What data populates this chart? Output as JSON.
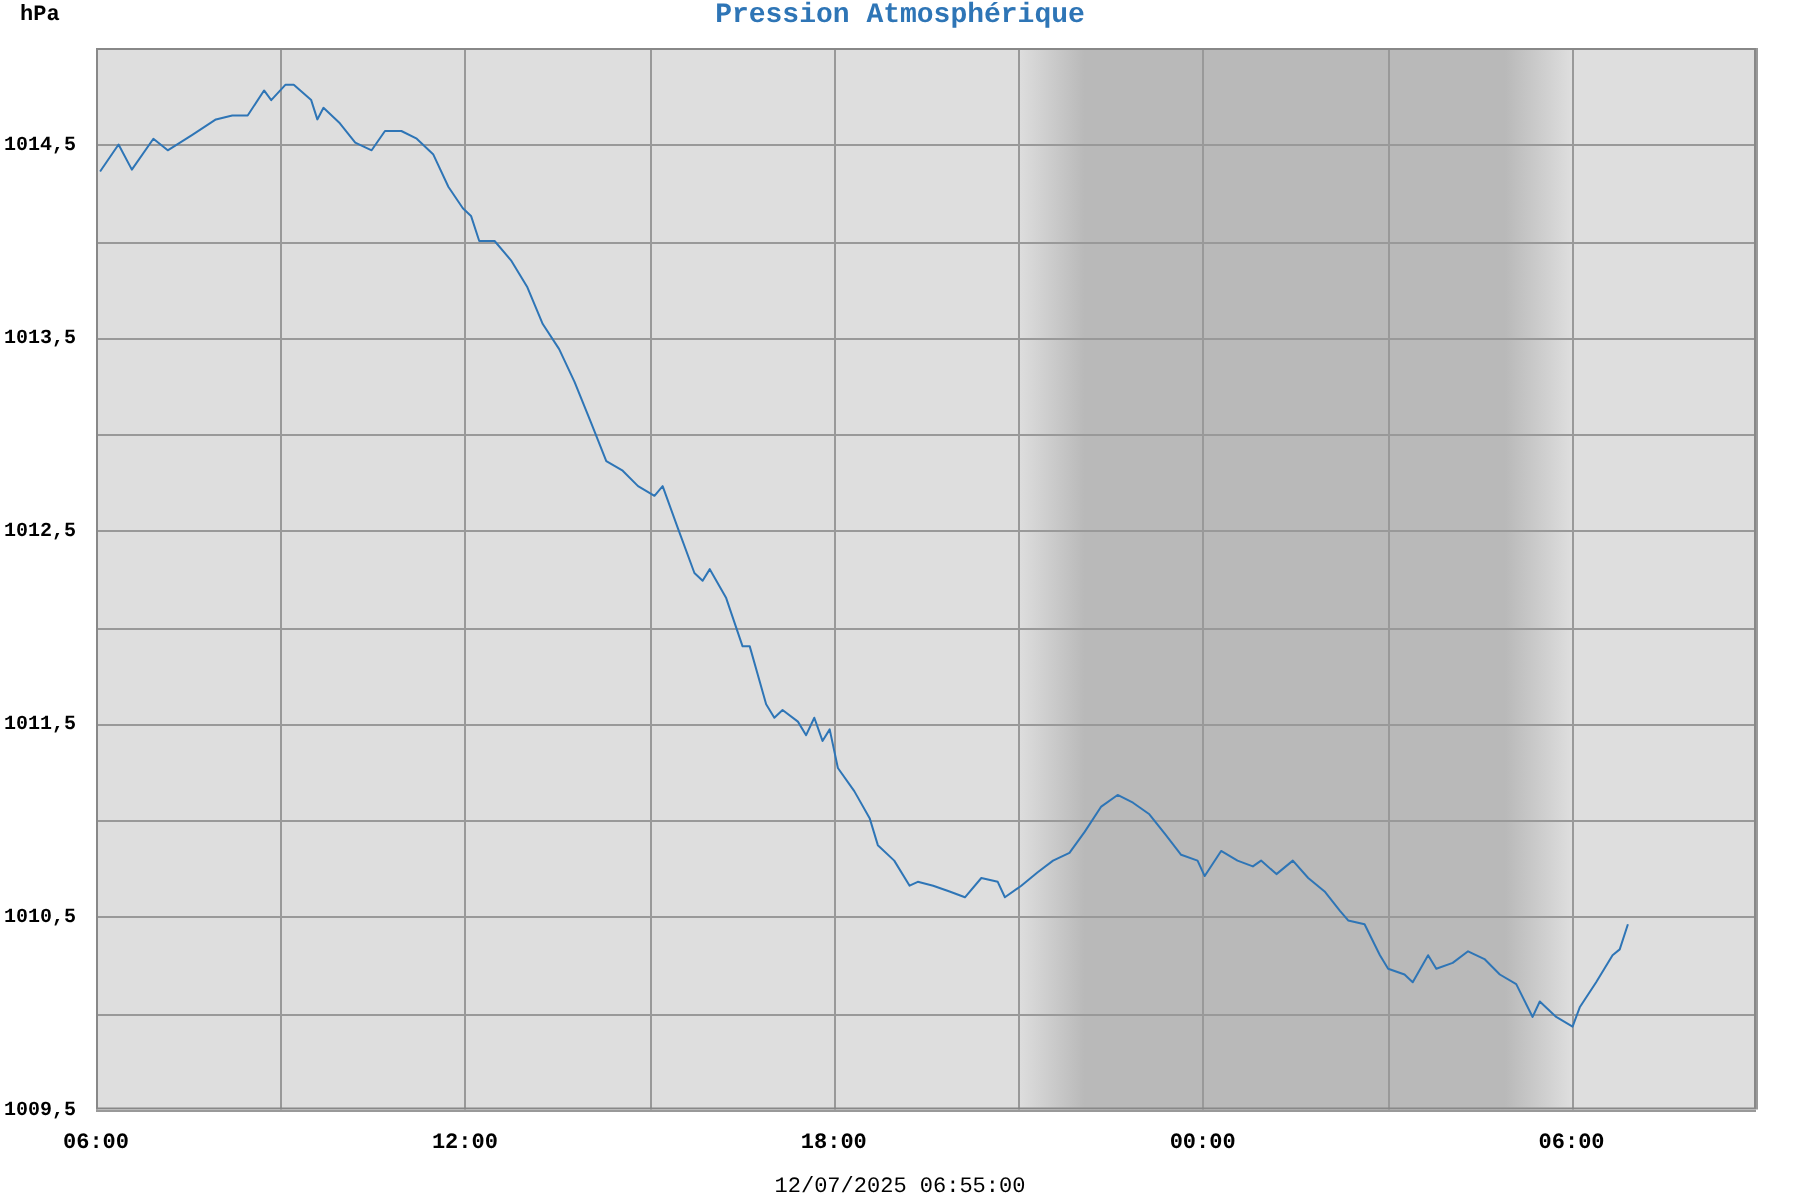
{
  "chart_data": {
    "type": "line",
    "title": "Pression Atmosphérique",
    "ylabel": "hPa",
    "annotations": [
      "12/07/2025 06:55:00"
    ],
    "xlim": [
      "2025-07-11T06:00",
      "2025-07-12T09:00"
    ],
    "xticks": [
      {
        "value": "2025-07-11T06:00",
        "label": "06:00"
      },
      {
        "value": "2025-07-11T09:00",
        "label": null
      },
      {
        "value": "2025-07-11T12:00",
        "label": "12:00"
      },
      {
        "value": "2025-07-11T15:00",
        "label": null
      },
      {
        "value": "2025-07-11T18:00",
        "label": "18:00"
      },
      {
        "value": "2025-07-11T21:00",
        "label": null
      },
      {
        "value": "2025-07-12T00:00",
        "label": "00:00"
      },
      {
        "value": "2025-07-12T03:00",
        "label": null
      },
      {
        "value": "2025-07-12T06:00",
        "label": "06:00"
      },
      {
        "value": "2025-07-12T09:00",
        "label": null
      }
    ],
    "ylim": [
      1009.5,
      1015
    ],
    "yticks": [
      {
        "value": 1009.5,
        "label": "1009,5"
      },
      {
        "value": 1010,
        "label": null
      },
      {
        "value": 1010.5,
        "label": "1010,5"
      },
      {
        "value": 1011,
        "label": null
      },
      {
        "value": 1011.5,
        "label": "1011,5"
      },
      {
        "value": 1012,
        "label": null
      },
      {
        "value": 1012.5,
        "label": "1012,5"
      },
      {
        "value": 1013,
        "label": null
      },
      {
        "value": 1013.5,
        "label": "1013,5"
      },
      {
        "value": 1014,
        "label": null
      },
      {
        "value": 1014.5,
        "label": "1014,5"
      },
      {
        "value": 1015,
        "label": null
      }
    ],
    "grid": true,
    "legend": false,
    "marker": "none",
    "line_style": "solid",
    "bands": [
      {
        "axis": "x",
        "from": "2025-07-11T21:00",
        "to": "2025-07-12T06:00",
        "color": "#b9b9b9"
      }
    ],
    "x": [
      "2025-07-11T06:04",
      "2025-07-11T06:22",
      "2025-07-11T06:35",
      "2025-07-11T06:56",
      "2025-07-11T07:10",
      "2025-07-11T07:34",
      "2025-07-11T07:57",
      "2025-07-11T08:13",
      "2025-07-11T08:28",
      "2025-07-11T08:44",
      "2025-07-11T08:51",
      "2025-07-11T09:05",
      "2025-07-11T09:13",
      "2025-07-11T09:30",
      "2025-07-11T09:36",
      "2025-07-11T09:42",
      "2025-07-11T09:58",
      "2025-07-11T10:13",
      "2025-07-11T10:29",
      "2025-07-11T10:42",
      "2025-07-11T10:58",
      "2025-07-11T11:13",
      "2025-07-11T11:29",
      "2025-07-11T11:44",
      "2025-07-11T11:58",
      "2025-07-11T12:06",
      "2025-07-11T12:14",
      "2025-07-11T12:29",
      "2025-07-11T12:45",
      "2025-07-11T13:01",
      "2025-07-11T13:16",
      "2025-07-11T13:32",
      "2025-07-11T13:47",
      "2025-07-11T14:03",
      "2025-07-11T14:18",
      "2025-07-11T14:34",
      "2025-07-11T14:49",
      "2025-07-11T15:05",
      "2025-07-11T15:13",
      "2025-07-11T15:28",
      "2025-07-11T15:44",
      "2025-07-11T15:52",
      "2025-07-11T15:59",
      "2025-07-11T16:15",
      "2025-07-11T16:31",
      "2025-07-11T16:38",
      "2025-07-11T16:54",
      "2025-07-11T17:02",
      "2025-07-11T17:10",
      "2025-07-11T17:25",
      "2025-07-11T17:33",
      "2025-07-11T17:41",
      "2025-07-11T17:49",
      "2025-07-11T17:56",
      "2025-07-11T18:04",
      "2025-07-11T18:20",
      "2025-07-11T18:35",
      "2025-07-11T18:43",
      "2025-07-11T18:59",
      "2025-07-11T19:14",
      "2025-07-11T19:22",
      "2025-07-11T19:37",
      "2025-07-11T19:53",
      "2025-07-11T20:08",
      "2025-07-11T20:24",
      "2025-07-11T20:40",
      "2025-07-11T20:47",
      "2025-07-11T21:03",
      "2025-07-11T21:19",
      "2025-07-11T21:34",
      "2025-07-11T21:50",
      "2025-07-11T22:05",
      "2025-07-11T22:21",
      "2025-07-11T22:37",
      "2025-07-11T22:52",
      "2025-07-11T23:08",
      "2025-07-11T23:23",
      "2025-07-11T23:39",
      "2025-07-11T23:55",
      "2025-07-12T00:02",
      "2025-07-12T00:18",
      "2025-07-12T00:34",
      "2025-07-12T00:49",
      "2025-07-12T00:57",
      "2025-07-12T01:12",
      "2025-07-12T01:28",
      "2025-07-12T01:43",
      "2025-07-12T01:59",
      "2025-07-12T02:14",
      "2025-07-12T02:22",
      "2025-07-12T02:38",
      "2025-07-12T02:53",
      "2025-07-12T03:01",
      "2025-07-12T03:17",
      "2025-07-12T03:25",
      "2025-07-12T03:40",
      "2025-07-12T03:48",
      "2025-07-12T04:04",
      "2025-07-12T04:19",
      "2025-07-12T04:35",
      "2025-07-12T04:50",
      "2025-07-12T05:06",
      "2025-07-12T05:22",
      "2025-07-12T05:29",
      "2025-07-12T05:45",
      "2025-07-12T06:01",
      "2025-07-12T06:08",
      "2025-07-12T06:24",
      "2025-07-12T06:40",
      "2025-07-12T06:47",
      "2025-07-12T06:55"
    ],
    "series": [
      {
        "color": "#2e75b6",
        "values": [
          1014.36,
          1014.5,
          1014.37,
          1014.53,
          1014.47,
          1014.55,
          1014.63,
          1014.65,
          1014.65,
          1014.78,
          1014.73,
          1014.81,
          1014.81,
          1014.73,
          1014.63,
          1014.69,
          1014.61,
          1014.51,
          1014.47,
          1014.57,
          1014.57,
          1014.53,
          1014.45,
          1014.28,
          1014.17,
          1014.13,
          1014.0,
          1014.0,
          1013.9,
          1013.76,
          1013.57,
          1013.44,
          1013.27,
          1013.06,
          1012.86,
          1012.81,
          1012.73,
          1012.68,
          1012.73,
          1012.51,
          1012.28,
          1012.24,
          1012.3,
          1012.15,
          1011.9,
          1011.9,
          1011.6,
          1011.53,
          1011.57,
          1011.51,
          1011.44,
          1011.53,
          1011.41,
          1011.47,
          1011.27,
          1011.15,
          1011.01,
          1010.87,
          1010.79,
          1010.66,
          1010.68,
          1010.66,
          1010.63,
          1010.6,
          1010.7,
          1010.68,
          1010.6,
          1010.66,
          1010.73,
          1010.79,
          1010.83,
          1010.94,
          1011.07,
          1011.13,
          1011.09,
          1011.03,
          1010.93,
          1010.82,
          1010.79,
          1010.71,
          1010.84,
          1010.79,
          1010.76,
          1010.79,
          1010.72,
          1010.79,
          1010.7,
          1010.63,
          1010.53,
          1010.48,
          1010.46,
          1010.3,
          1010.23,
          1010.2,
          1010.16,
          1010.3,
          1010.23,
          1010.26,
          1010.32,
          1010.28,
          1010.2,
          1010.15,
          1009.98,
          1010.06,
          1009.98,
          1009.93,
          1010.03,
          1010.16,
          1010.3,
          1010.33,
          1010.46
        ]
      }
    ]
  }
}
